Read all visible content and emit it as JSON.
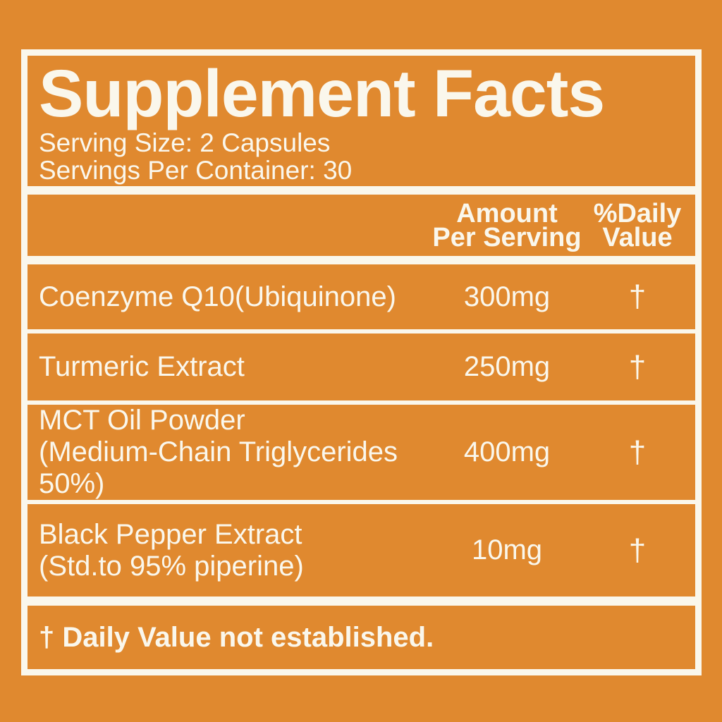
{
  "label": {
    "title": "Supplement Facts",
    "serving_size": "Serving Size: 2 Capsules",
    "servings_per_container": "Servings Per Container: 30",
    "columns": {
      "amount_line1": "Amount",
      "amount_line2": "Per Serving",
      "dv_line1": "%Daily",
      "dv_line2": "Value"
    },
    "rows": [
      {
        "name_line1": "Coenzyme Q10(Ubiquinone)",
        "name_line2": "",
        "amount": "300mg",
        "daily_value": "†"
      },
      {
        "name_line1": "Turmeric Extract",
        "name_line2": "",
        "amount": "250mg",
        "daily_value": "†"
      },
      {
        "name_line1": "MCT Oil Powder",
        "name_line2": "(Medium-Chain Triglycerides 50%)",
        "amount": "400mg",
        "daily_value": "†"
      },
      {
        "name_line1": "Black Pepper Extract",
        "name_line2": "(Std.to 95% piperine)",
        "amount": "10mg",
        "daily_value": "†"
      }
    ],
    "footnote": "† Daily Value not established.",
    "colors": {
      "background": "#E0892F",
      "foreground": "#FAF7EC"
    }
  }
}
